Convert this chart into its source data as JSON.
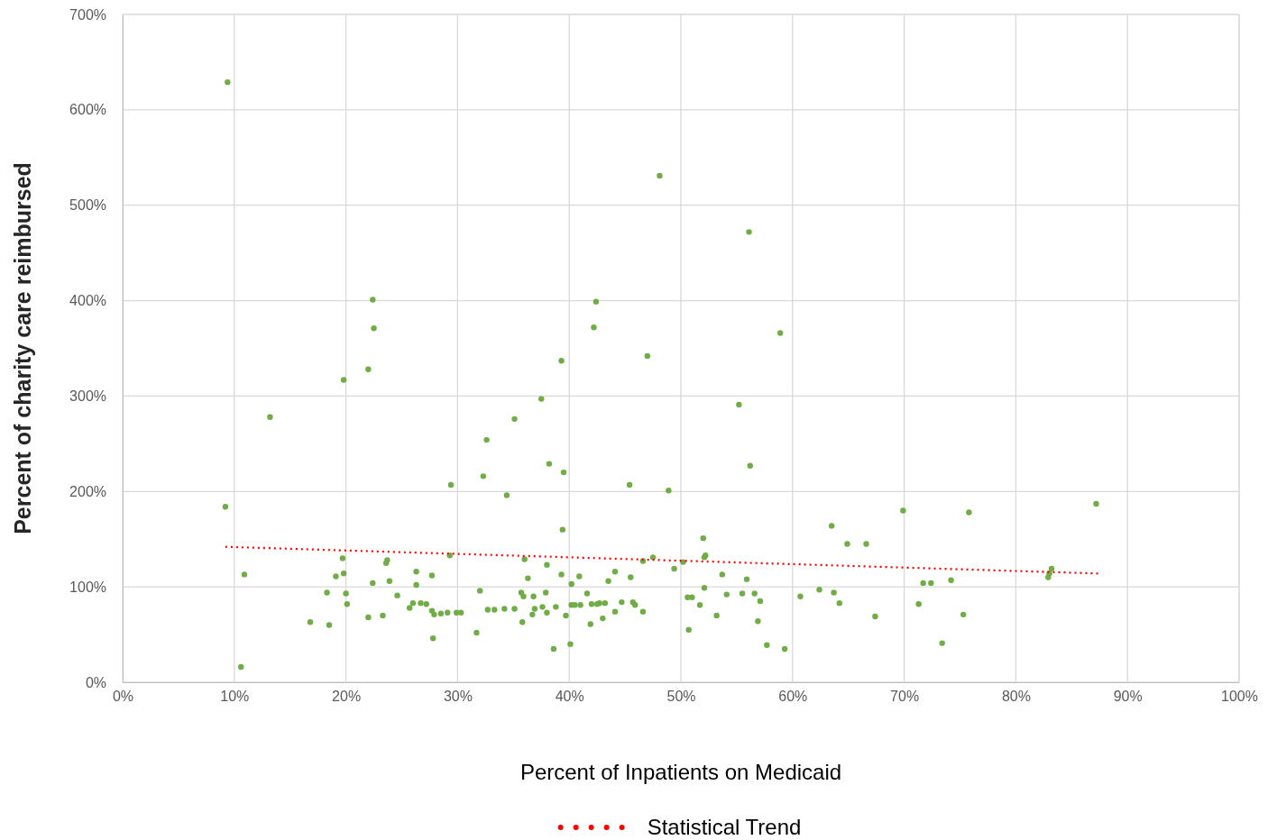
{
  "chart_data": {
    "type": "scatter",
    "xlabel": "Percent of Inpatients on Medicaid",
    "ylabel": "Percent of charity care reimbursed",
    "xlim": [
      0,
      100
    ],
    "ylim": [
      0,
      700
    ],
    "xticks": [
      {
        "value": 0,
        "label": "0%"
      },
      {
        "value": 10,
        "label": "10%"
      },
      {
        "value": 20,
        "label": "20%"
      },
      {
        "value": 30,
        "label": "30%"
      },
      {
        "value": 40,
        "label": "40%"
      },
      {
        "value": 50,
        "label": "50%"
      },
      {
        "value": 60,
        "label": "60%"
      },
      {
        "value": 70,
        "label": "70%"
      },
      {
        "value": 80,
        "label": "80%"
      },
      {
        "value": 90,
        "label": "90%"
      },
      {
        "value": 100,
        "label": "100%"
      }
    ],
    "yticks": [
      {
        "value": 0,
        "label": "0%"
      },
      {
        "value": 100,
        "label": "100%"
      },
      {
        "value": 200,
        "label": "200%"
      },
      {
        "value": 300,
        "label": "300%"
      },
      {
        "value": 400,
        "label": "400%"
      },
      {
        "value": 500,
        "label": "500%"
      },
      {
        "value": 600,
        "label": "600%"
      },
      {
        "value": 700,
        "label": "700%"
      }
    ],
    "grid": true,
    "legend": "bottom",
    "series": [
      {
        "color": "#70ad47",
        "marker": "circle",
        "x": [
          9.4,
          9.2,
          10.6,
          10.9,
          13.2,
          16.8,
          18.3,
          18.5,
          19.1,
          19.7,
          19.8,
          19.8,
          20.0,
          20.1,
          22.0,
          22.0,
          22.4,
          22.4,
          22.5,
          23.3,
          23.6,
          23.7,
          23.9,
          24.6,
          25.7,
          26.0,
          26.3,
          26.3,
          26.7,
          27.2,
          27.7,
          27.7,
          27.8,
          27.9,
          28.5,
          29.1,
          29.3,
          29.4,
          29.9,
          30.3,
          31.7,
          32.0,
          32.3,
          32.6,
          32.7,
          33.3,
          34.2,
          34.4,
          35.1,
          35.1,
          35.7,
          35.8,
          35.9,
          36.0,
          36.3,
          36.7,
          36.8,
          36.9,
          37.5,
          37.6,
          37.9,
          38.0,
          38.0,
          38.2,
          38.6,
          38.8,
          39.3,
          39.3,
          39.4,
          39.5,
          39.7,
          40.1,
          40.2,
          40.2,
          40.5,
          40.9,
          41.0,
          41.6,
          41.9,
          42.0,
          42.2,
          42.4,
          42.5,
          42.7,
          43.0,
          43.2,
          43.5,
          44.1,
          44.1,
          44.7,
          45.4,
          45.5,
          45.7,
          45.9,
          46.6,
          46.6,
          47.0,
          47.5,
          48.1,
          48.9,
          49.4,
          50.2,
          50.6,
          50.7,
          51.0,
          51.7,
          52.0,
          52.1,
          52.2,
          52.1,
          53.2,
          53.7,
          54.1,
          55.2,
          55.5,
          55.9,
          56.1,
          56.2,
          56.6,
          56.9,
          57.1,
          57.7,
          58.9,
          59.3,
          60.7,
          62.4,
          63.5,
          63.7,
          64.2,
          64.9,
          66.6,
          67.4,
          69.9,
          71.3,
          71.7,
          72.4,
          73.4,
          74.2,
          75.3,
          75.8,
          82.9,
          83.0,
          83.2,
          87.2
        ],
        "values": [
          629,
          184,
          16,
          113,
          278,
          63,
          94,
          60,
          111,
          130,
          317,
          114,
          93,
          82,
          68,
          328,
          401,
          104,
          371,
          70,
          125,
          128,
          106,
          91,
          78,
          83,
          116,
          102,
          83,
          82,
          112,
          75,
          46,
          71,
          72,
          73,
          133,
          207,
          73,
          73,
          52,
          96,
          216,
          254,
          76,
          76,
          77,
          196,
          276,
          77,
          94,
          63,
          90,
          129,
          109,
          71,
          90,
          77,
          297,
          79,
          94,
          123,
          73,
          229,
          35,
          79,
          337,
          113,
          160,
          220,
          70,
          40,
          103,
          81,
          81,
          111,
          81,
          93,
          61,
          82,
          372,
          399,
          82,
          83,
          67,
          83,
          106,
          116,
          74,
          84,
          207,
          110,
          84,
          81,
          127,
          74,
          342,
          131,
          531,
          201,
          119,
          126,
          89,
          55,
          89,
          81,
          151,
          131,
          133,
          99,
          70,
          113,
          92,
          291,
          93,
          108,
          472,
          227,
          93,
          64,
          85,
          39,
          366,
          35,
          90,
          97,
          164,
          94,
          83,
          145,
          145,
          69,
          180,
          82,
          104,
          104,
          41,
          107,
          71,
          178,
          110,
          114,
          119,
          187
        ]
      },
      {
        "type": "line",
        "name": "Statistical Trend",
        "color": "#ff0000",
        "line_style": "dotted",
        "marker": "none",
        "x": [
          9.2,
          87.4
        ],
        "values": [
          142,
          114
        ]
      }
    ]
  }
}
